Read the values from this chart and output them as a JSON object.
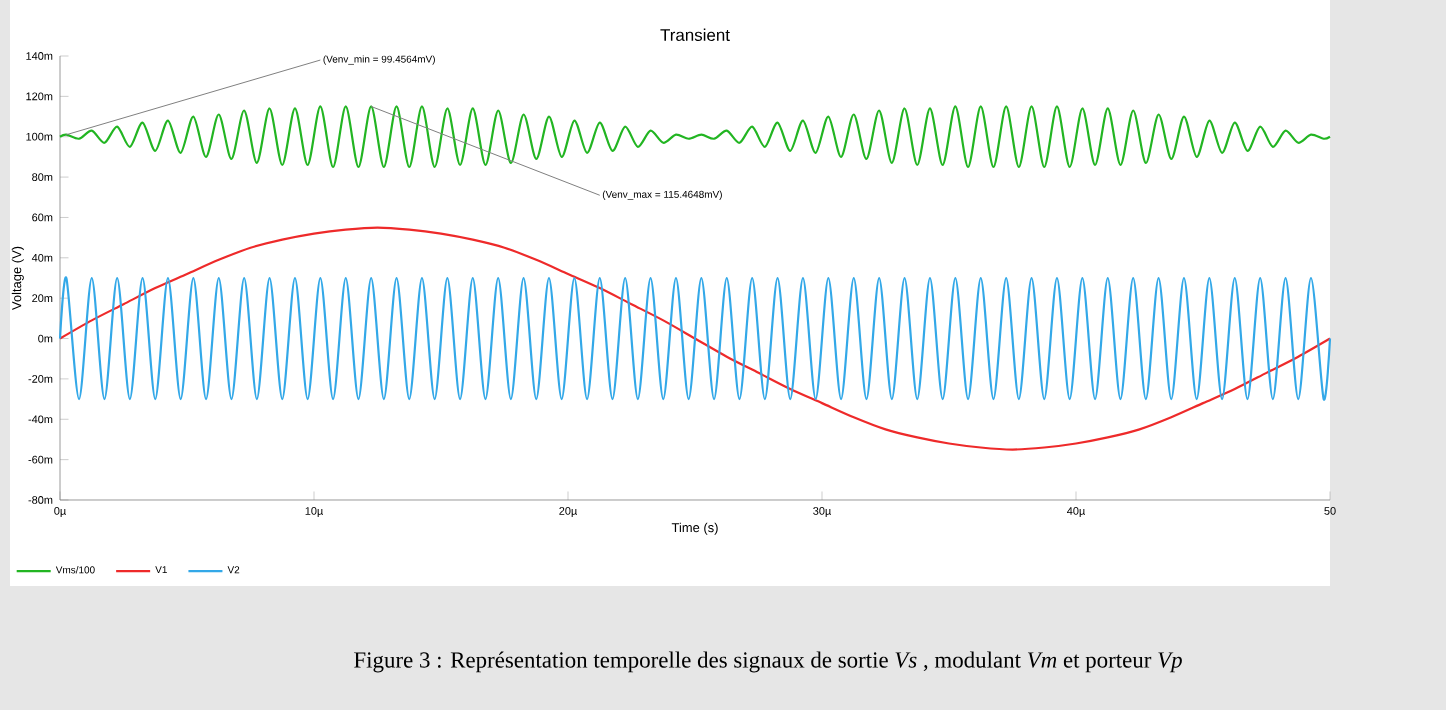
{
  "chart_data": {
    "type": "line",
    "title": "Transient",
    "xlabel": "Time (s)",
    "ylabel": "Voltage (V)",
    "xlim": [
      0,
      50
    ],
    "ylim": [
      -80,
      140
    ],
    "xticks": [
      {
        "value": 0,
        "label": "0µ"
      },
      {
        "value": 10,
        "label": "10µ"
      },
      {
        "value": 20,
        "label": "20µ"
      },
      {
        "value": 30,
        "label": "30µ"
      },
      {
        "value": 40,
        "label": "40µ"
      },
      {
        "value": 50,
        "label": "50"
      }
    ],
    "yticks": [
      {
        "value": -80,
        "label": "-80m"
      },
      {
        "value": -60,
        "label": "-60m"
      },
      {
        "value": -40,
        "label": "-40m"
      },
      {
        "value": -20,
        "label": "-20m"
      },
      {
        "value": 0,
        "label": "0m"
      },
      {
        "value": 20,
        "label": "20m"
      },
      {
        "value": 40,
        "label": "40m"
      },
      {
        "value": 60,
        "label": "60m"
      },
      {
        "value": 80,
        "label": "80m"
      },
      {
        "value": 100,
        "label": "100m"
      },
      {
        "value": 120,
        "label": "120m"
      },
      {
        "value": 140,
        "label": "140m"
      }
    ],
    "legend": "bottom left",
    "series": [
      {
        "name": "Vms/100",
        "color": "#22b522",
        "x": [
          0,
          0.25,
          0.75,
          1.25,
          1.75,
          2.25,
          2.75,
          3.25,
          3.75,
          4.25,
          4.75,
          5.25,
          5.75,
          6.25,
          6.75,
          7.25,
          7.75,
          8.25,
          8.75,
          9.25,
          9.75,
          10.25,
          10.75,
          11.25,
          11.75,
          12.25,
          12.75,
          13.25,
          13.75,
          14.25,
          14.75,
          15.25,
          15.75,
          16.25,
          16.75,
          17.25,
          17.75,
          18.25,
          18.75,
          19.25,
          19.75,
          20.25,
          20.75,
          21.25,
          21.75,
          22.25,
          22.75,
          23.25,
          23.75,
          24.25,
          24.75,
          25.25,
          25.75,
          26.25,
          26.75,
          27.25,
          27.75,
          28.25,
          28.75,
          29.25,
          29.75,
          30.25,
          30.75,
          31.25,
          31.75,
          32.25,
          32.75,
          33.25,
          33.75,
          34.25,
          34.75,
          35.25,
          35.75,
          36.25,
          36.75,
          37.25,
          37.75,
          38.25,
          38.75,
          39.25,
          39.75,
          40.25,
          40.75,
          41.25,
          41.75,
          42.25,
          42.75,
          43.25,
          43.75,
          44.25,
          44.75,
          45.25,
          45.75,
          46.25,
          46.75,
          47.25,
          47.75,
          48.25,
          48.75,
          49.25,
          49.75,
          50
        ],
        "values": [
          100,
          101,
          99,
          103,
          97,
          105,
          95,
          107,
          93,
          108,
          92,
          110,
          90,
          111,
          89,
          113,
          87,
          114,
          86,
          114,
          86,
          115,
          85,
          115,
          85,
          115,
          85,
          115,
          85,
          115,
          85,
          114,
          86,
          114,
          86,
          113,
          87,
          111,
          89,
          110,
          90,
          108,
          92,
          107,
          93,
          105,
          95,
          103,
          97,
          101,
          99,
          101,
          99,
          103,
          97,
          105,
          95,
          107,
          93,
          108,
          92,
          110,
          90,
          111,
          89,
          113,
          87,
          114,
          86,
          114,
          86,
          115,
          85,
          115,
          85,
          115,
          85,
          115,
          85,
          115,
          85,
          114,
          86,
          114,
          86,
          113,
          87,
          111,
          89,
          110,
          90,
          108,
          92,
          107,
          93,
          105,
          95,
          103,
          97,
          101,
          99,
          100
        ]
      },
      {
        "name": "V1",
        "color": "#ee2a2a",
        "x": [
          0,
          1.25,
          2.5,
          3.75,
          5,
          6.25,
          7.5,
          8.75,
          10,
          11.25,
          12.5,
          13.75,
          15,
          16.25,
          17.5,
          18.75,
          20,
          21.25,
          22.5,
          23.75,
          25,
          26.25,
          27.5,
          28.75,
          30,
          31.25,
          32.5,
          33.75,
          35,
          36.25,
          37.5,
          38.75,
          40,
          41.25,
          42.5,
          43.75,
          45,
          46.25,
          47.5,
          48.75,
          50
        ],
        "values": [
          0,
          9,
          17,
          25,
          32,
          39,
          45,
          49,
          52,
          54,
          55,
          54,
          52,
          49,
          45,
          39,
          32,
          25,
          17,
          9,
          0,
          -9,
          -17,
          -25,
          -32,
          -39,
          -45,
          -49,
          -52,
          -54,
          -55,
          -54,
          -52,
          -49,
          -45,
          -39,
          -32,
          -25,
          -17,
          -9,
          0
        ]
      },
      {
        "name": "V2",
        "color": "#33a8e8",
        "x": [
          0,
          0.25,
          0.75,
          1.25,
          1.75,
          2.25,
          2.75,
          3.25,
          3.75,
          4.25,
          4.75,
          5.25,
          5.75,
          6.25,
          6.75,
          7.25,
          7.75,
          8.25,
          8.75,
          9.25,
          9.75,
          10.25,
          10.75,
          11.25,
          11.75,
          12.25,
          12.75,
          13.25,
          13.75,
          14.25,
          14.75,
          15.25,
          15.75,
          16.25,
          16.75,
          17.25,
          17.75,
          18.25,
          18.75,
          19.25,
          19.75,
          20.25,
          20.75,
          21.25,
          21.75,
          22.25,
          22.75,
          23.25,
          23.75,
          24.25,
          24.75,
          25.25,
          25.75,
          26.25,
          26.75,
          27.25,
          27.75,
          28.25,
          28.75,
          29.25,
          29.75,
          30.25,
          30.75,
          31.25,
          31.75,
          32.25,
          32.75,
          33.25,
          33.75,
          34.25,
          34.75,
          35.25,
          35.75,
          36.25,
          36.75,
          37.25,
          37.75,
          38.25,
          38.75,
          39.25,
          39.75,
          40.25,
          40.75,
          41.25,
          41.75,
          42.25,
          42.75,
          43.25,
          43.75,
          44.25,
          44.75,
          45.25,
          45.75,
          46.25,
          46.75,
          47.25,
          47.75,
          48.25,
          48.75,
          49.25,
          49.75,
          50
        ],
        "values": [
          0,
          30,
          -30,
          30,
          -30,
          30,
          -30,
          30,
          -30,
          30,
          -30,
          30,
          -30,
          30,
          -30,
          30,
          -30,
          30,
          -30,
          30,
          -30,
          30,
          -30,
          30,
          -30,
          30,
          -30,
          30,
          -30,
          30,
          -30,
          30,
          -30,
          30,
          -30,
          30,
          -30,
          30,
          -30,
          30,
          -30,
          30,
          -30,
          30,
          -30,
          30,
          -30,
          30,
          -30,
          30,
          -30,
          30,
          -30,
          30,
          -30,
          30,
          -30,
          30,
          -30,
          30,
          -30,
          30,
          -30,
          30,
          -30,
          30,
          -30,
          30,
          -30,
          30,
          -30,
          30,
          -30,
          30,
          -30,
          30,
          -30,
          30,
          -30,
          30,
          -30,
          30,
          -30,
          30,
          -30,
          30,
          -30,
          30,
          -30,
          30,
          -30,
          30,
          -30,
          30,
          -30,
          30,
          -30,
          30,
          -30,
          30,
          -30,
          0
        ]
      }
    ],
    "annotations": [
      {
        "text": "(Venv_min = 99.4564mV)",
        "x": 0.25,
        "y": 101
      },
      {
        "text": "(Venv_max = 115.4648mV)",
        "x": 12.25,
        "y": 115
      },
      "Figure 3 : Représentation temporelle des signaux de sortie *Vs* , modulant *Vm* et porteur *Vp*"
    ]
  }
}
